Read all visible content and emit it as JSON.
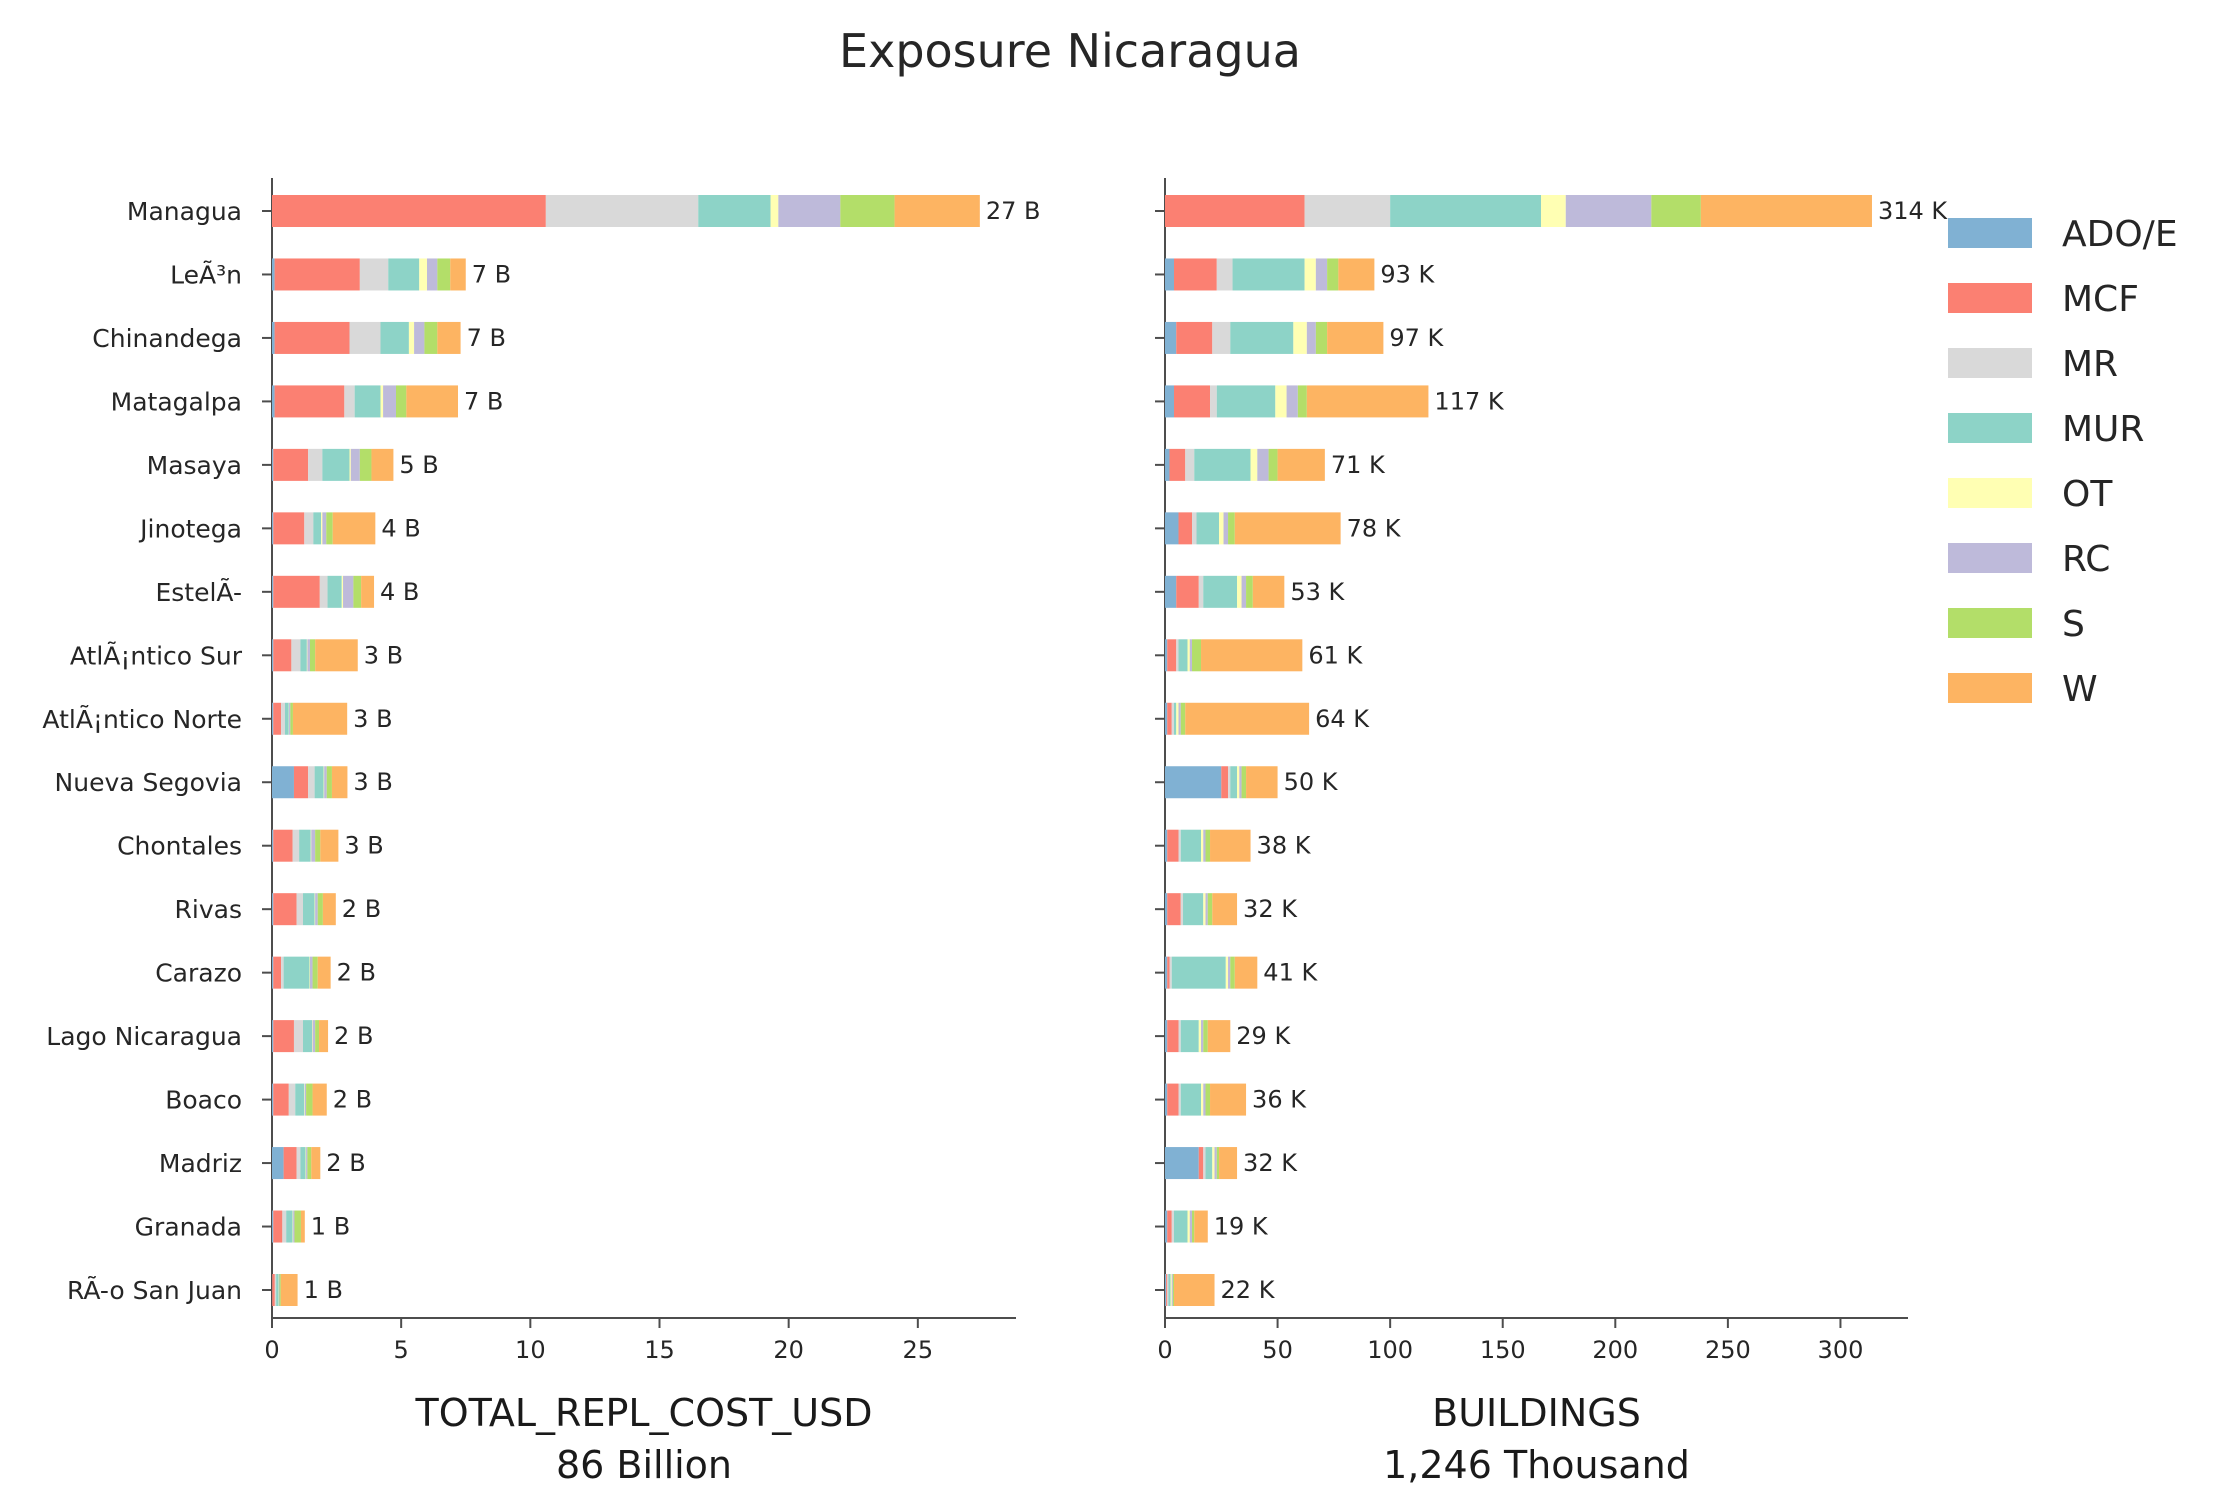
{
  "title": "Exposure Nicaragua",
  "chart_data": {
    "type": "bar",
    "orientation": "horizontal",
    "stacked": true,
    "title": "Exposure Nicaragua",
    "categories": [
      "Managua",
      "LeÃ³n",
      "Chinandega",
      "Matagalpa",
      "Masaya",
      "Jinotega",
      "EstelÃ-",
      "AtlÃ¡ntico Sur",
      "AtlÃ¡ntico Norte",
      "Nueva Segovia",
      "Chontales",
      "Rivas",
      "Carazo",
      "Lago Nicaragua",
      "Boaco",
      "Madriz",
      "Granada",
      "RÃ-o San Juan"
    ],
    "legend": {
      "position": "right",
      "entries": [
        {
          "name": "ADO/E",
          "color": "#80b1d3"
        },
        {
          "name": "MCF",
          "color": "#fb8072"
        },
        {
          "name": "MR",
          "color": "#d9d9d9"
        },
        {
          "name": "MUR",
          "color": "#8dd3c7"
        },
        {
          "name": "OT",
          "color": "#ffffb3"
        },
        {
          "name": "RC",
          "color": "#bebada"
        },
        {
          "name": "S",
          "color": "#b3de69"
        },
        {
          "name": "W",
          "color": "#fdb462"
        }
      ]
    },
    "panels": [
      {
        "xlabel": "TOTAL_REPL_COST_USD",
        "xlabel_sub": "86 Billion",
        "xlim": [
          0,
          28.8
        ],
        "xticks": [
          0,
          5,
          10,
          15,
          20,
          25
        ],
        "tick_labels": [
          "0",
          "5",
          "10",
          "15",
          "20",
          "25"
        ],
        "totals": [
          "27 B",
          "7 B",
          "7 B",
          "7 B",
          "5 B",
          "4 B",
          "4 B",
          "3 B",
          "3 B",
          "3 B",
          "3 B",
          "2 B",
          "2 B",
          "2 B",
          "2 B",
          "2 B",
          "1 B",
          "1 B"
        ],
        "values": [
          [
            0,
            10.6,
            5.9,
            2.8,
            0.3,
            2.4,
            2.1,
            3.3
          ],
          [
            0.1,
            3.3,
            1.1,
            1.2,
            0.3,
            0.4,
            0.5,
            0.6
          ],
          [
            0.1,
            2.9,
            1.2,
            1.1,
            0.2,
            0.4,
            0.5,
            0.9
          ],
          [
            0.1,
            2.7,
            0.4,
            1.0,
            0.1,
            0.5,
            0.4,
            2.0
          ],
          [
            0.05,
            1.35,
            0.55,
            1.05,
            0.05,
            0.35,
            0.45,
            0.85
          ],
          [
            0.05,
            1.2,
            0.35,
            0.3,
            0.05,
            0.15,
            0.25,
            1.65
          ],
          [
            0.05,
            1.8,
            0.3,
            0.55,
            0.05,
            0.4,
            0.3,
            0.5
          ],
          [
            0.05,
            0.7,
            0.35,
            0.25,
            0.02,
            0.1,
            0.2,
            1.65
          ],
          [
            0.05,
            0.3,
            0.15,
            0.15,
            0.01,
            0.05,
            0.1,
            2.1
          ],
          [
            0.85,
            0.55,
            0.25,
            0.35,
            0.02,
            0.1,
            0.2,
            0.6
          ],
          [
            0.05,
            0.75,
            0.25,
            0.45,
            0.02,
            0.15,
            0.2,
            0.7
          ],
          [
            0.05,
            0.9,
            0.25,
            0.45,
            0.02,
            0.1,
            0.2,
            0.5
          ],
          [
            0.05,
            0.3,
            0.1,
            1.0,
            0.02,
            0.1,
            0.2,
            0.5
          ],
          [
            0.05,
            0.8,
            0.35,
            0.35,
            0.02,
            0.1,
            0.15,
            0.35
          ],
          [
            0.05,
            0.6,
            0.25,
            0.35,
            0.02,
            0.05,
            0.25,
            0.55
          ],
          [
            0.45,
            0.5,
            0.15,
            0.2,
            0.02,
            0.05,
            0.15,
            0.35
          ],
          [
            0.05,
            0.35,
            0.15,
            0.25,
            0.02,
            0.05,
            0.25,
            0.15
          ],
          [
            0.01,
            0.1,
            0.05,
            0.1,
            0.01,
            0.02,
            0.05,
            0.65
          ]
        ]
      },
      {
        "xlabel": "BUILDINGS",
        "xlabel_sub": "1,246 Thousand",
        "xlim": [
          0,
          330
        ],
        "xticks": [
          0,
          50,
          100,
          150,
          200,
          250,
          300
        ],
        "tick_labels": [
          "0",
          "50",
          "100",
          "150",
          "200",
          "250",
          "300"
        ],
        "totals": [
          "314 K",
          "93 K",
          "97 K",
          "117 K",
          "71 K",
          "78 K",
          "53 K",
          "61 K",
          "64 K",
          "50 K",
          "38 K",
          "32 K",
          "41 K",
          "29 K",
          "36 K",
          "32 K",
          "19 K",
          "22 K"
        ],
        "values": [
          [
            0,
            62,
            38,
            67,
            11,
            38,
            22,
            76
          ],
          [
            4,
            19,
            7,
            32,
            5,
            5,
            5,
            16
          ],
          [
            5,
            16,
            8,
            28,
            6,
            4,
            5,
            25
          ],
          [
            4,
            16,
            3,
            26,
            5,
            5,
            4,
            54
          ],
          [
            2,
            7,
            4,
            25,
            3,
            5,
            4,
            21
          ],
          [
            6,
            6,
            2,
            10,
            2,
            2,
            3,
            47
          ],
          [
            5,
            10,
            2,
            15,
            2,
            2,
            3,
            14
          ],
          [
            1,
            4,
            1,
            4,
            1,
            1,
            4,
            45
          ],
          [
            1,
            2,
            1,
            1,
            1,
            1,
            2,
            55
          ],
          [
            25,
            3,
            1,
            3,
            1,
            1,
            2,
            14
          ],
          [
            1,
            5,
            1,
            9,
            1,
            1,
            2,
            18
          ],
          [
            1,
            6,
            1,
            9,
            1,
            1,
            2,
            11
          ],
          [
            1,
            1,
            1,
            24,
            1,
            1,
            2,
            10
          ],
          [
            1,
            5,
            1,
            8,
            1,
            1,
            2,
            10
          ],
          [
            1,
            5,
            1,
            9,
            1,
            1,
            2,
            16
          ],
          [
            15,
            2,
            1,
            3,
            1,
            1,
            1,
            8
          ],
          [
            1,
            2,
            1,
            6,
            1,
            1,
            1,
            6
          ],
          [
            0.5,
            0.5,
            0.5,
            1,
            0.5,
            0.5,
            0.5,
            18
          ]
        ]
      }
    ]
  }
}
